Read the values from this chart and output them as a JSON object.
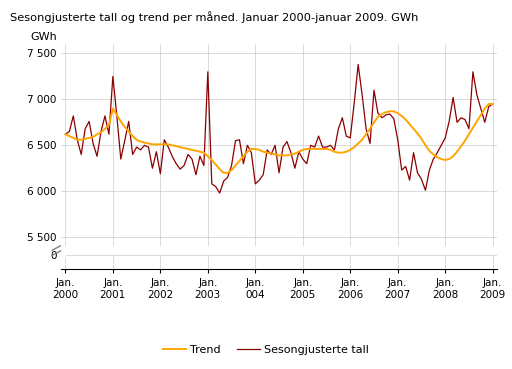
{
  "title": "Sesongjusterte tall og trend per måned. Januar 2000-januar 2009. GWh",
  "ylabel": "GWh",
  "yticks_main": [
    5500,
    6000,
    6500,
    7000,
    7500
  ],
  "ytick_labels_main": [
    "5 500",
    "6 000",
    "6 500",
    "7 000",
    "7 500"
  ],
  "ytick_zero": [
    "0"
  ],
  "xtick_labels": [
    "Jan.\n2000",
    "Jan.\n2001",
    "Jan.\n2002",
    "Jan.\n2003",
    "Jan.\n004",
    "Jan.\n2005",
    "Jan.\n2006",
    "Jan.\n2007",
    "Jan.\n2008",
    "Jan.\n2009"
  ],
  "trend_color": "#FFA500",
  "seasonal_color": "#8B0000",
  "trend_label": "Trend",
  "seasonal_label": "Sesongjusterte tall",
  "background_color": "#ffffff",
  "grid_color": "#cccccc",
  "trend": [
    6620,
    6600,
    6580,
    6560,
    6560,
    6570,
    6580,
    6590,
    6620,
    6640,
    6680,
    6720,
    6900,
    6830,
    6760,
    6700,
    6650,
    6600,
    6560,
    6540,
    6530,
    6520,
    6510,
    6510,
    6510,
    6510,
    6510,
    6500,
    6490,
    6480,
    6470,
    6460,
    6450,
    6440,
    6430,
    6420,
    6380,
    6340,
    6290,
    6240,
    6200,
    6200,
    6230,
    6280,
    6330,
    6380,
    6430,
    6460,
    6460,
    6450,
    6430,
    6420,
    6410,
    6400,
    6390,
    6390,
    6390,
    6400,
    6410,
    6430,
    6450,
    6460,
    6460,
    6460,
    6460,
    6460,
    6460,
    6450,
    6430,
    6420,
    6420,
    6430,
    6450,
    6480,
    6520,
    6560,
    6620,
    6680,
    6750,
    6810,
    6840,
    6860,
    6870,
    6870,
    6850,
    6820,
    6780,
    6730,
    6680,
    6630,
    6570,
    6500,
    6440,
    6400,
    6370,
    6350,
    6340,
    6350,
    6380,
    6430,
    6490,
    6550,
    6620,
    6690,
    6760,
    6830,
    6900,
    6950,
    6950
  ],
  "seasonal": [
    6620,
    6650,
    6820,
    6560,
    6400,
    6680,
    6760,
    6520,
    6380,
    6650,
    6820,
    6620,
    7250,
    6820,
    6350,
    6550,
    6760,
    6400,
    6480,
    6450,
    6500,
    6480,
    6250,
    6430,
    6190,
    6560,
    6480,
    6380,
    6300,
    6240,
    6280,
    6400,
    6350,
    6180,
    6380,
    6280,
    7300,
    6080,
    6050,
    5980,
    6110,
    6150,
    6280,
    6550,
    6560,
    6300,
    6500,
    6420,
    6080,
    6120,
    6180,
    6450,
    6400,
    6500,
    6200,
    6480,
    6540,
    6420,
    6250,
    6430,
    6350,
    6300,
    6500,
    6480,
    6600,
    6480,
    6480,
    6500,
    6450,
    6680,
    6800,
    6600,
    6580,
    6960,
    7380,
    7050,
    6680,
    6520,
    7100,
    6850,
    6800,
    6830,
    6840,
    6790,
    6560,
    6230,
    6270,
    6120,
    6420,
    6200,
    6130,
    6010,
    6230,
    6350,
    6420,
    6500,
    6580,
    6760,
    7020,
    6750,
    6800,
    6780,
    6680,
    7300,
    7050,
    6900,
    6750,
    6920,
    6950
  ]
}
